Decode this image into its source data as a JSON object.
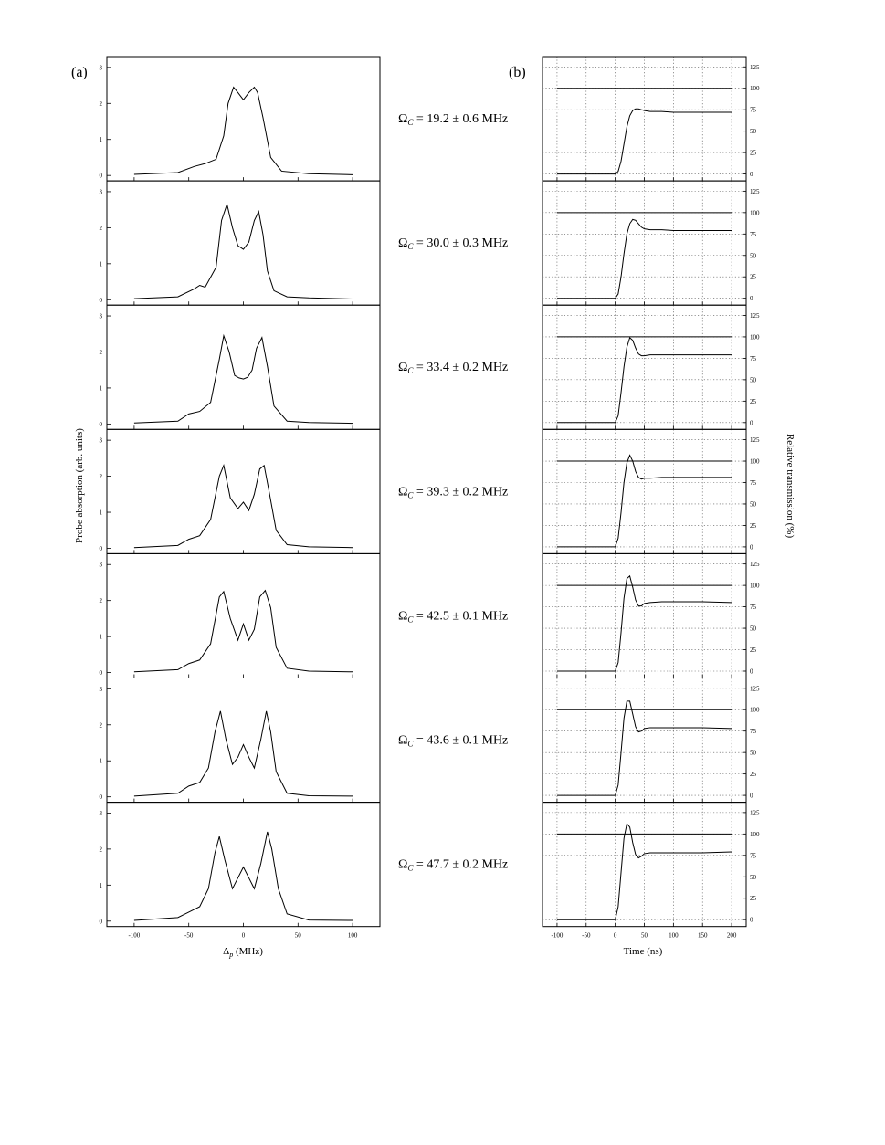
{
  "panel_a_label": "(a)",
  "panel_b_label": "(b)",
  "chart_data": [
    {
      "type": "line",
      "panel": "(a)",
      "xlabel_symbol": "Δ",
      "xlabel_sub": "p",
      "xlabel_rest": " (MHz)",
      "ylabel": "Probe absorption (arb. units)",
      "xlim": [
        -125,
        125
      ],
      "ylim": [
        -0.15,
        3.3
      ],
      "x_ticks": [
        -100,
        -50,
        0,
        50,
        100
      ],
      "y_ticks": [
        0,
        1,
        2,
        3
      ],
      "series": [
        {
          "x": [
            -100,
            -60,
            -45,
            -35,
            -25,
            -18,
            -14,
            -9,
            -5,
            0,
            5,
            10,
            13,
            18,
            25,
            35,
            60,
            100
          ],
          "y": [
            0.03,
            0.08,
            0.25,
            0.33,
            0.45,
            1.1,
            2.0,
            2.45,
            2.3,
            2.1,
            2.3,
            2.45,
            2.3,
            1.6,
            0.5,
            0.12,
            0.05,
            0.02
          ]
        },
        {
          "x": [
            -100,
            -60,
            -45,
            -40,
            -35,
            -25,
            -20,
            -15,
            -10,
            -5,
            0,
            5,
            10,
            14,
            18,
            22,
            28,
            40,
            60,
            100
          ],
          "y": [
            0.03,
            0.08,
            0.3,
            0.4,
            0.35,
            0.9,
            2.2,
            2.65,
            2.0,
            1.5,
            1.4,
            1.6,
            2.2,
            2.45,
            1.8,
            0.8,
            0.25,
            0.08,
            0.05,
            0.02
          ]
        },
        {
          "x": [
            -100,
            -60,
            -50,
            -40,
            -30,
            -22,
            -18,
            -13,
            -8,
            -4,
            0,
            4,
            8,
            12,
            17,
            22,
            28,
            40,
            60,
            100
          ],
          "y": [
            0.03,
            0.08,
            0.28,
            0.35,
            0.6,
            1.8,
            2.45,
            2.0,
            1.35,
            1.28,
            1.25,
            1.3,
            1.5,
            2.1,
            2.4,
            1.6,
            0.5,
            0.08,
            0.04,
            0.02
          ]
        },
        {
          "x": [
            -100,
            -60,
            -50,
            -40,
            -30,
            -22,
            -18,
            -12,
            -5,
            0,
            5,
            10,
            15,
            19,
            24,
            30,
            40,
            60,
            100
          ],
          "y": [
            0.02,
            0.08,
            0.25,
            0.35,
            0.8,
            2.0,
            2.3,
            1.4,
            1.1,
            1.28,
            1.05,
            1.5,
            2.2,
            2.3,
            1.5,
            0.5,
            0.1,
            0.04,
            0.02
          ]
        },
        {
          "x": [
            -100,
            -60,
            -50,
            -40,
            -30,
            -22,
            -18,
            -12,
            -5,
            0,
            5,
            10,
            15,
            20,
            25,
            30,
            40,
            60,
            100
          ],
          "y": [
            0.02,
            0.08,
            0.25,
            0.35,
            0.8,
            2.1,
            2.25,
            1.5,
            0.9,
            1.35,
            0.9,
            1.2,
            2.1,
            2.28,
            1.8,
            0.7,
            0.12,
            0.04,
            0.02
          ]
        },
        {
          "x": [
            -100,
            -60,
            -50,
            -40,
            -32,
            -26,
            -21,
            -16,
            -10,
            -5,
            0,
            5,
            10,
            16,
            21,
            25,
            30,
            40,
            60,
            100
          ],
          "y": [
            0.02,
            0.1,
            0.3,
            0.4,
            0.8,
            1.8,
            2.38,
            1.6,
            0.9,
            1.1,
            1.45,
            1.1,
            0.8,
            1.6,
            2.38,
            1.8,
            0.7,
            0.1,
            0.03,
            0.02
          ]
        },
        {
          "x": [
            -100,
            -60,
            -50,
            -40,
            -32,
            -26,
            -22,
            -17,
            -10,
            -5,
            0,
            5,
            10,
            16,
            22,
            26,
            32,
            40,
            60,
            100
          ],
          "y": [
            0.02,
            0.1,
            0.25,
            0.4,
            0.9,
            1.9,
            2.35,
            1.7,
            0.9,
            1.2,
            1.5,
            1.2,
            0.9,
            1.6,
            2.48,
            2.0,
            0.9,
            0.2,
            0.03,
            0.02
          ]
        }
      ]
    },
    {
      "type": "line",
      "panel": "(b)",
      "xlabel": "Time (ns)",
      "ylabel": "Relative transmission (%)",
      "xlim": [
        -125,
        225
      ],
      "ylim": [
        -8,
        137
      ],
      "x_ticks": [
        -100,
        -50,
        0,
        50,
        100,
        150,
        200
      ],
      "y_ticks": [
        0,
        25,
        50,
        75,
        100,
        125
      ],
      "series": [
        {
          "reference": 100,
          "x": [
            -100,
            0,
            5,
            10,
            15,
            20,
            25,
            30,
            35,
            40,
            45,
            50,
            60,
            80,
            100,
            150,
            200
          ],
          "y": [
            0,
            0,
            3,
            15,
            35,
            55,
            68,
            74,
            76,
            76,
            75,
            74,
            73,
            73,
            72,
            72,
            72
          ]
        },
        {
          "reference": 100,
          "x": [
            -100,
            0,
            5,
            10,
            15,
            20,
            25,
            30,
            35,
            40,
            45,
            50,
            60,
            80,
            100,
            150,
            200
          ],
          "y": [
            0,
            0,
            5,
            25,
            52,
            75,
            87,
            92,
            91,
            87,
            83,
            81,
            80,
            80,
            79,
            79,
            79
          ]
        },
        {
          "reference": 100,
          "x": [
            -100,
            0,
            5,
            10,
            15,
            20,
            25,
            30,
            35,
            40,
            45,
            50,
            60,
            80,
            100,
            150,
            200
          ],
          "y": [
            0,
            0,
            8,
            35,
            65,
            88,
            99,
            96,
            87,
            80,
            78,
            78,
            79,
            79,
            79,
            79,
            79
          ]
        },
        {
          "reference": 100,
          "x": [
            -100,
            0,
            5,
            10,
            15,
            20,
            25,
            30,
            35,
            40,
            45,
            50,
            60,
            80,
            100,
            150,
            200
          ],
          "y": [
            0,
            0,
            10,
            40,
            75,
            98,
            107,
            100,
            88,
            81,
            79,
            80,
            80,
            81,
            81,
            81,
            81
          ]
        },
        {
          "reference": 100,
          "x": [
            -100,
            0,
            5,
            10,
            15,
            20,
            25,
            30,
            35,
            40,
            45,
            50,
            60,
            80,
            100,
            150,
            200
          ],
          "y": [
            0,
            0,
            10,
            45,
            85,
            108,
            111,
            98,
            83,
            76,
            76,
            79,
            80,
            81,
            81,
            81,
            80
          ]
        },
        {
          "reference": 100,
          "x": [
            -100,
            0,
            5,
            10,
            15,
            20,
            25,
            30,
            35,
            40,
            45,
            50,
            60,
            80,
            100,
            150,
            200
          ],
          "y": [
            0,
            0,
            12,
            50,
            90,
            110,
            110,
            95,
            80,
            74,
            75,
            78,
            79,
            79,
            79,
            79,
            78
          ]
        },
        {
          "reference": 100,
          "x": [
            -100,
            0,
            5,
            10,
            15,
            20,
            25,
            30,
            35,
            40,
            45,
            50,
            60,
            80,
            100,
            150,
            200
          ],
          "y": [
            0,
            0,
            15,
            55,
            95,
            112,
            108,
            90,
            76,
            72,
            74,
            77,
            78,
            78,
            78,
            78,
            79
          ]
        }
      ]
    }
  ],
  "omega_labels": [
    {
      "symbol": "Ω",
      "sub": "C",
      "text": " = 19.2 ± 0.6 MHz"
    },
    {
      "symbol": "Ω",
      "sub": "C",
      "text": " = 30.0 ± 0.3 MHz"
    },
    {
      "symbol": "Ω",
      "sub": "C",
      "text": " = 33.4 ± 0.2 MHz"
    },
    {
      "symbol": "Ω",
      "sub": "C",
      "text": " = 39.3 ± 0.2 MHz"
    },
    {
      "symbol": "Ω",
      "sub": "C",
      "text": " = 42.5 ± 0.1 MHz"
    },
    {
      "symbol": "Ω",
      "sub": "C",
      "text": " = 43.6 ± 0.1 MHz"
    },
    {
      "symbol": "Ω",
      "sub": "C",
      "text": " = 47.7 ± 0.2 MHz"
    }
  ]
}
